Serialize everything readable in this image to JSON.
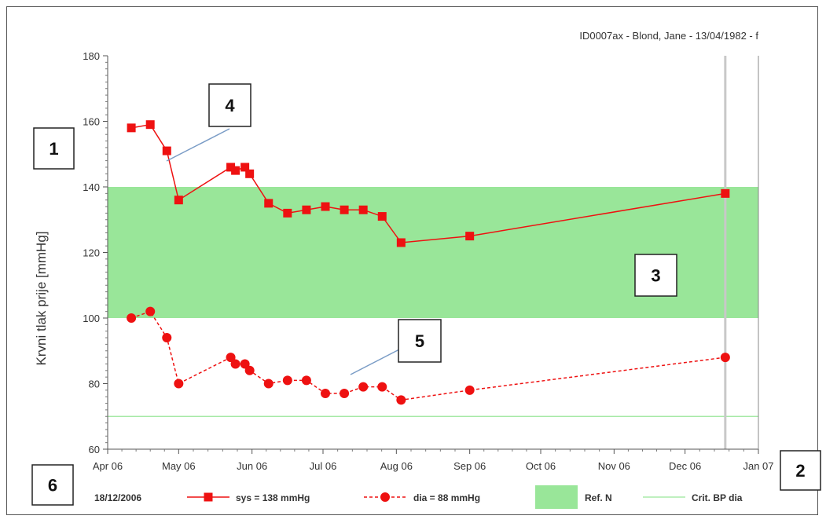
{
  "header": "ID0007ax - Blond, Jane - 13/04/1982 - f",
  "chart_data": {
    "type": "line",
    "ylabel": "Krvni tlak prije [mmHg]",
    "xlabel": "",
    "ylim": [
      60,
      180
    ],
    "yticks": [
      60,
      80,
      100,
      120,
      140,
      160,
      180
    ],
    "xlim": [
      "2006-04-01",
      "2007-01-01"
    ],
    "xticks": [
      {
        "date": "2006-04-01",
        "label": "Apr 06"
      },
      {
        "date": "2006-05-01",
        "label": "May 06"
      },
      {
        "date": "2006-06-01",
        "label": "Jun 06"
      },
      {
        "date": "2006-07-01",
        "label": "Jul 06"
      },
      {
        "date": "2006-08-01",
        "label": "Aug 06"
      },
      {
        "date": "2006-09-01",
        "label": "Sep 06"
      },
      {
        "date": "2006-10-01",
        "label": "Oct 06"
      },
      {
        "date": "2006-11-01",
        "label": "Nov 06"
      },
      {
        "date": "2006-12-01",
        "label": "Dec 06"
      },
      {
        "date": "2007-01-01",
        "label": "Jan 07"
      }
    ],
    "reference_band": {
      "name": "Ref. N",
      "y_from": 100,
      "y_to": 140,
      "color": "#99e699"
    },
    "critical_line": {
      "name": "Crit. BP dia",
      "y": 70,
      "color": "#99e699"
    },
    "cursor_date": "2006-12-18",
    "series": [
      {
        "name": "sys = 138 mmHg",
        "marker": "square",
        "line": "solid",
        "color": "#ee1111",
        "x": [
          "2006-04-11",
          "2006-04-19",
          "2006-04-26",
          "2006-05-01",
          "2006-05-23",
          "2006-05-25",
          "2006-05-29",
          "2006-05-31",
          "2006-06-08",
          "2006-06-16",
          "2006-06-24",
          "2006-07-02",
          "2006-07-10",
          "2006-07-18",
          "2006-07-26",
          "2006-08-03",
          "2006-09-01",
          "2006-12-18"
        ],
        "y": [
          158,
          159,
          151,
          136,
          146,
          145,
          146,
          144,
          135,
          132,
          133,
          134,
          133,
          133,
          131,
          123,
          125,
          138
        ]
      },
      {
        "name": "dia = 88 mmHg",
        "marker": "circle",
        "line": "dashed",
        "color": "#ee1111",
        "x": [
          "2006-04-11",
          "2006-04-19",
          "2006-04-26",
          "2006-05-01",
          "2006-05-23",
          "2006-05-25",
          "2006-05-29",
          "2006-05-31",
          "2006-06-08",
          "2006-06-16",
          "2006-06-24",
          "2006-07-02",
          "2006-07-10",
          "2006-07-18",
          "2006-07-26",
          "2006-08-03",
          "2006-09-01",
          "2006-12-18"
        ],
        "y": [
          100,
          102,
          94,
          80,
          88,
          86,
          86,
          84,
          80,
          81,
          81,
          77,
          77,
          79,
          79,
          75,
          78,
          88
        ]
      }
    ]
  },
  "legend": {
    "date": "18/12/2006",
    "sys": "sys = 138 mmHg",
    "dia": "dia = 88 mmHg",
    "ref": "Ref. N",
    "crit": "Crit. BP dia"
  },
  "callouts": [
    "1",
    "2",
    "3",
    "4",
    "5",
    "6"
  ]
}
